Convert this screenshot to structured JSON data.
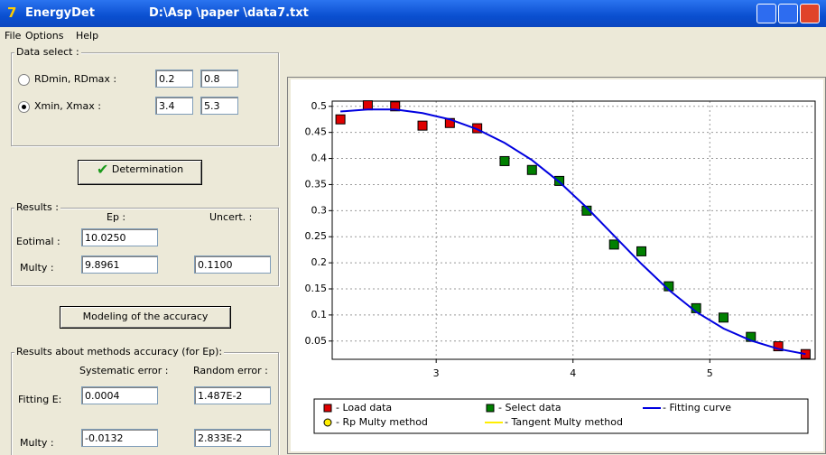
{
  "window": {
    "app_name": "EnergyDet",
    "file_path": "D:\\Asp \\paper \\data7.txt"
  },
  "menu": [
    "File",
    "Options",
    "Help"
  ],
  "data_select": {
    "title": "Data select :",
    "options": [
      {
        "label": "RDmin, RDmax :",
        "selected": false,
        "min": "0.2",
        "max": "0.8"
      },
      {
        "label": "Xmin, Xmax :",
        "selected": true,
        "min": "3.4",
        "max": "5.3"
      }
    ]
  },
  "determination_button": "Determination",
  "results": {
    "title": "Results :",
    "col_ep": "Ep :",
    "col_uncert": "Uncert. :",
    "eotimal_label": "Eotimal :",
    "eotimal_ep": "10.0250",
    "multy_label": "Multy :",
    "multy_ep": "9.8961",
    "multy_uncert": "0.1100"
  },
  "modeling_button": "Modeling of the accuracy",
  "accuracy": {
    "title": "Results about methods accuracy (for Ep):",
    "col_systematic": "Systematic error :",
    "col_random": "Random error :",
    "fitting_label": "Fitting E:",
    "fitting_systematic": "0.0004",
    "fitting_random": "1.487E-2",
    "multy_label": "Multy :",
    "multy_systematic": "-0.0132",
    "multy_random": "2.833E-2"
  },
  "chart_data": {
    "type": "scatter",
    "xlim": [
      2.24,
      5.77
    ],
    "ylim": [
      0.015,
      0.51
    ],
    "xticks": [
      3,
      4,
      5
    ],
    "yticks": [
      0.05,
      0.1,
      0.15,
      0.2,
      0.25,
      0.3,
      0.35,
      0.4,
      0.45,
      0.5
    ],
    "grid": true,
    "series": [
      {
        "name": "- Load data",
        "color": "#e00000",
        "marker": "square",
        "x": [
          2.3,
          2.5,
          2.7,
          2.9,
          3.1,
          3.3,
          5.5,
          5.7
        ],
        "values": [
          0.475,
          0.502,
          0.5,
          0.463,
          0.468,
          0.458,
          0.04,
          0.025
        ]
      },
      {
        "name": "- Select data",
        "color": "#008000",
        "marker": "square",
        "x": [
          3.5,
          3.7,
          3.9,
          4.1,
          4.3,
          4.5,
          4.7,
          4.9,
          5.1,
          5.3
        ],
        "values": [
          0.395,
          0.378,
          0.357,
          0.3,
          0.235,
          0.222,
          0.155,
          0.113,
          0.095,
          0.058
        ]
      },
      {
        "name": "- Fitting curve",
        "color": "#0000e0",
        "marker": "line",
        "x": [
          2.3,
          2.5,
          2.7,
          2.9,
          3.1,
          3.3,
          3.5,
          3.7,
          3.9,
          4.1,
          4.3,
          4.5,
          4.7,
          4.9,
          5.1,
          5.3,
          5.5,
          5.7
        ],
        "values": [
          0.49,
          0.494,
          0.494,
          0.487,
          0.475,
          0.456,
          0.43,
          0.397,
          0.355,
          0.306,
          0.252,
          0.198,
          0.148,
          0.106,
          0.074,
          0.051,
          0.035,
          0.025
        ]
      },
      {
        "name": "- Rp Multy method",
        "color": "#ffee00",
        "marker": "circle"
      },
      {
        "name": "- Tangent Multy method",
        "color": "#ffee00",
        "marker": "line"
      }
    ]
  }
}
